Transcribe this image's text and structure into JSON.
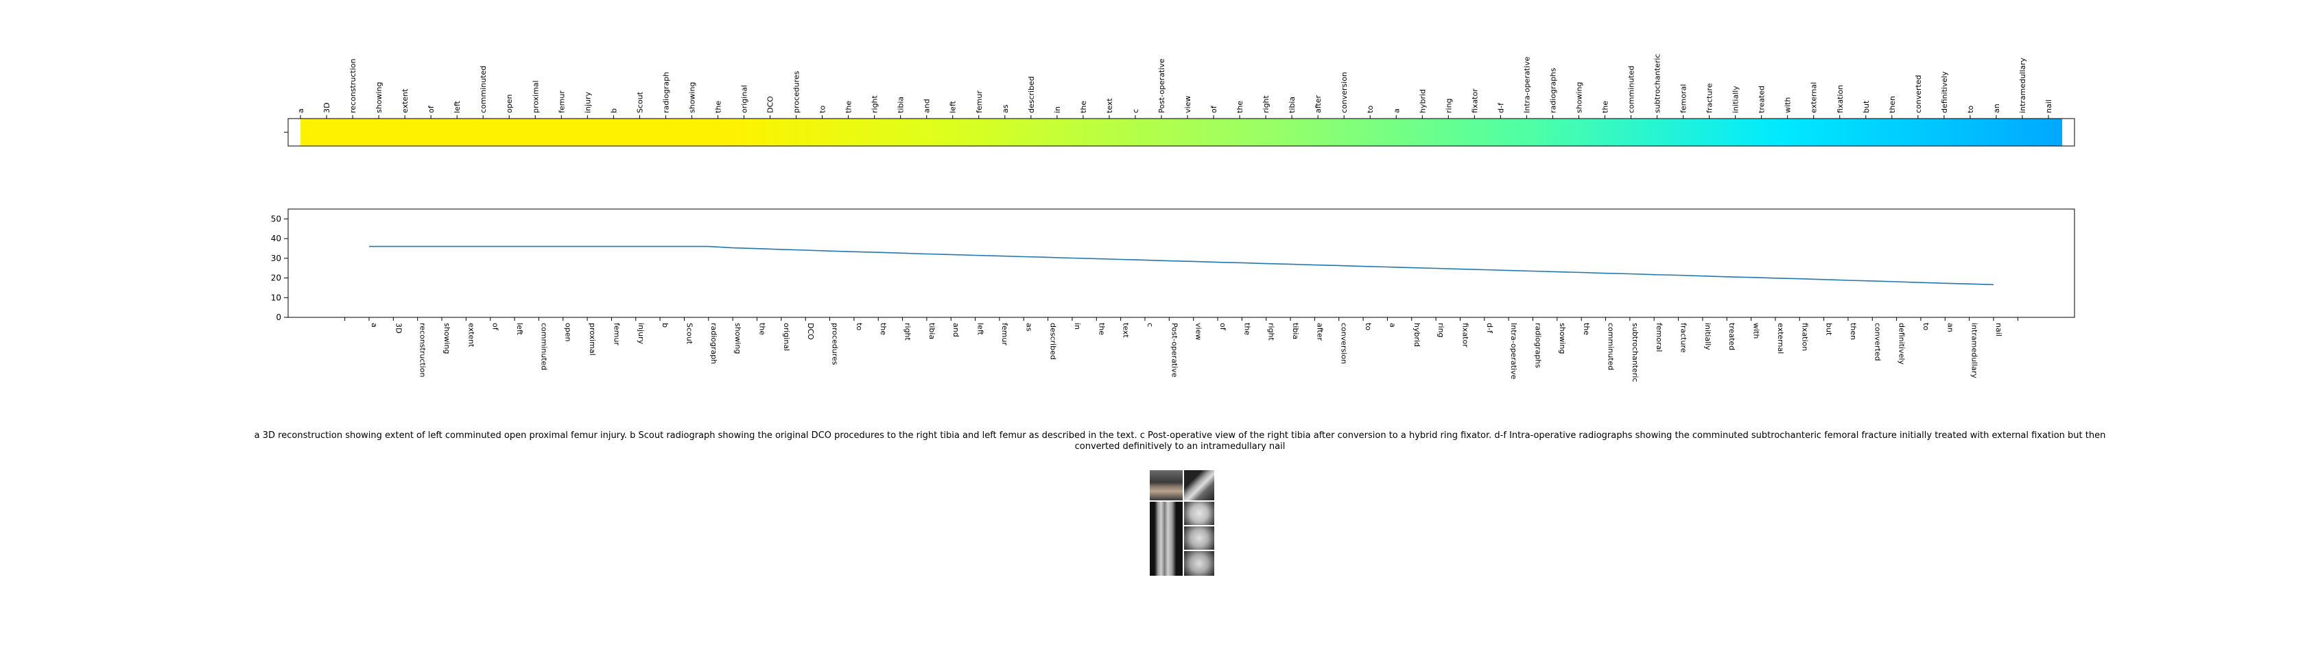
{
  "chart_data": [
    {
      "type": "heatmap",
      "tokens": [
        "a",
        "3D",
        "reconstruction",
        "showing",
        "extent",
        "of",
        "left",
        "comminuted",
        "open",
        "proximal",
        "femur",
        "injury",
        "b",
        "Scout",
        "radiograph",
        "showing",
        "the",
        "original",
        "DCO",
        "procedures",
        "to",
        "the",
        "right",
        "tibia",
        "and",
        "left",
        "femur",
        "as",
        "described",
        "in",
        "the",
        "text",
        "c",
        "Post-operative",
        "view",
        "of",
        "the",
        "right",
        "tibia",
        "after",
        "conversion",
        "to",
        "a",
        "hybrid",
        "ring",
        "fixator",
        "d-f",
        "Intra-operative",
        "radiographs",
        "showing",
        "the",
        "comminuted",
        "subtrochanteric",
        "femoral",
        "fracture",
        "initially",
        "treated",
        "with",
        "external",
        "fixation",
        "but",
        "then",
        "converted",
        "definitively",
        "to",
        "an",
        "intramedullary",
        "nail"
      ],
      "colors": {
        "start": "#fff200",
        "mid1": "#dfff1a",
        "mid2": "#66ff8c",
        "mid3": "#00eaff",
        "end": "#00a8ff"
      }
    },
    {
      "type": "line",
      "x": [
        "a",
        "3D",
        "reconstruction",
        "showing",
        "extent",
        "of",
        "left",
        "comminuted",
        "open",
        "proximal",
        "femur",
        "injury",
        "b",
        "Scout",
        "radiograph",
        "showing",
        "the",
        "original",
        "DCO",
        "procedures",
        "to",
        "the",
        "right",
        "tibia",
        "and",
        "left",
        "femur",
        "as",
        "described",
        "in",
        "the",
        "text",
        "c",
        "Post-operative",
        "view",
        "of",
        "the",
        "right",
        "tibia",
        "after",
        "conversion",
        "to",
        "a",
        "hybrid",
        "ring",
        "fixator",
        "d-f",
        "Intra-operative",
        "radiographs",
        "showing",
        "the",
        "comminuted",
        "subtrochanteric",
        "femoral",
        "fracture",
        "initially",
        "treated",
        "with",
        "external",
        "fixation",
        "but",
        "then",
        "converted",
        "definitively",
        "to",
        "an",
        "intramedullary",
        "nail"
      ],
      "y": [
        36,
        36,
        36,
        36,
        36,
        36,
        36,
        36,
        36,
        36,
        36,
        36,
        36,
        36,
        36,
        35.3,
        34.9,
        34.5,
        34.1,
        33.7,
        33.3,
        33.0,
        32.6,
        32.2,
        31.9,
        31.5,
        31.2,
        30.8,
        30.5,
        30.1,
        29.8,
        29.4,
        29.1,
        28.7,
        28.4,
        28.0,
        27.7,
        27.3,
        27.0,
        26.6,
        26.3,
        25.9,
        25.6,
        25.2,
        24.9,
        24.5,
        24.2,
        23.8,
        23.5,
        23.1,
        22.8,
        22.4,
        22.1,
        21.7,
        21.4,
        21.0,
        20.6,
        20.3,
        19.9,
        19.6,
        19.2,
        18.8,
        18.5,
        18.1,
        17.7,
        17.3,
        17.0,
        16.6
      ],
      "yticks": [
        0,
        10,
        20,
        30,
        40,
        50
      ],
      "ylim": [
        0,
        55
      ],
      "color": "#1f77b4",
      "grid": false
    }
  ],
  "caption": "a 3D reconstruction showing extent of left comminuted open proximal femur injury. b Scout radiograph showing the original DCO procedures to the right tibia and left femur as described in the text. c Post-operative view of the right tibia after conversion to a hybrid ring fixator. d-f Intra-operative radiographs showing the comminuted subtrochanteric femoral fracture initially treated with external fixation but then converted definitively to an intramedullary nail"
}
